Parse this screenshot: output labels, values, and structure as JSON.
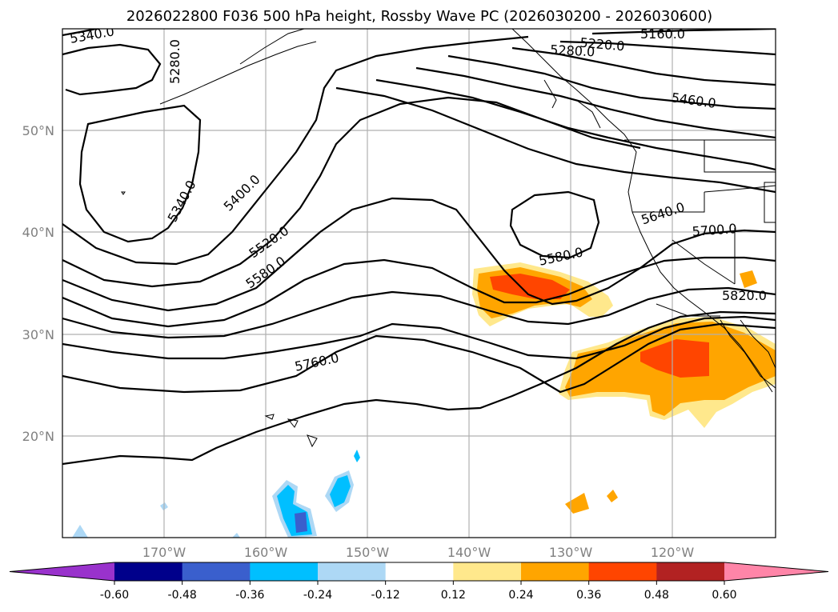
{
  "title": "2026022800 F036 500 hPa height, Rossby Wave PC (2026030200 - 2026030600)",
  "gridlines": {
    "lat_labels": [
      "50°N",
      "40°N",
      "30°N",
      "20°N"
    ],
    "lon_labels": [
      "170°W",
      "160°W",
      "150°W",
      "140°W",
      "130°W",
      "120°W"
    ]
  },
  "contour_labels": [
    "5340.0",
    "5280.0",
    "5220.0",
    "5160.0",
    "5280.0",
    "5460.0",
    "5340.0",
    "5400.0",
    "5520.0",
    "5580.0",
    "5580.0",
    "5640.0",
    "5700.0",
    "5820.0",
    "5760.0"
  ],
  "colorbar": {
    "ticks": [
      "-0.60",
      "-0.48",
      "-0.36",
      "-0.24",
      "-0.12",
      "0.12",
      "0.24",
      "0.36",
      "0.48",
      "0.60"
    ],
    "colors": [
      "#9932cc",
      "#00008b",
      "#3a5fcd",
      "#00bfff",
      "#add8f5",
      "#ffffff",
      "#ffe88c",
      "#ffa500",
      "#ff4500",
      "#b22222",
      "#ff85a8"
    ]
  },
  "colors": {
    "high_1": "#ffe88c",
    "high_2": "#ffa500",
    "high_3": "#ff4500",
    "low_1": "#add8f5",
    "low_2": "#00bfff",
    "low_3": "#3a5fcd",
    "low_4": "#9932cc"
  }
}
